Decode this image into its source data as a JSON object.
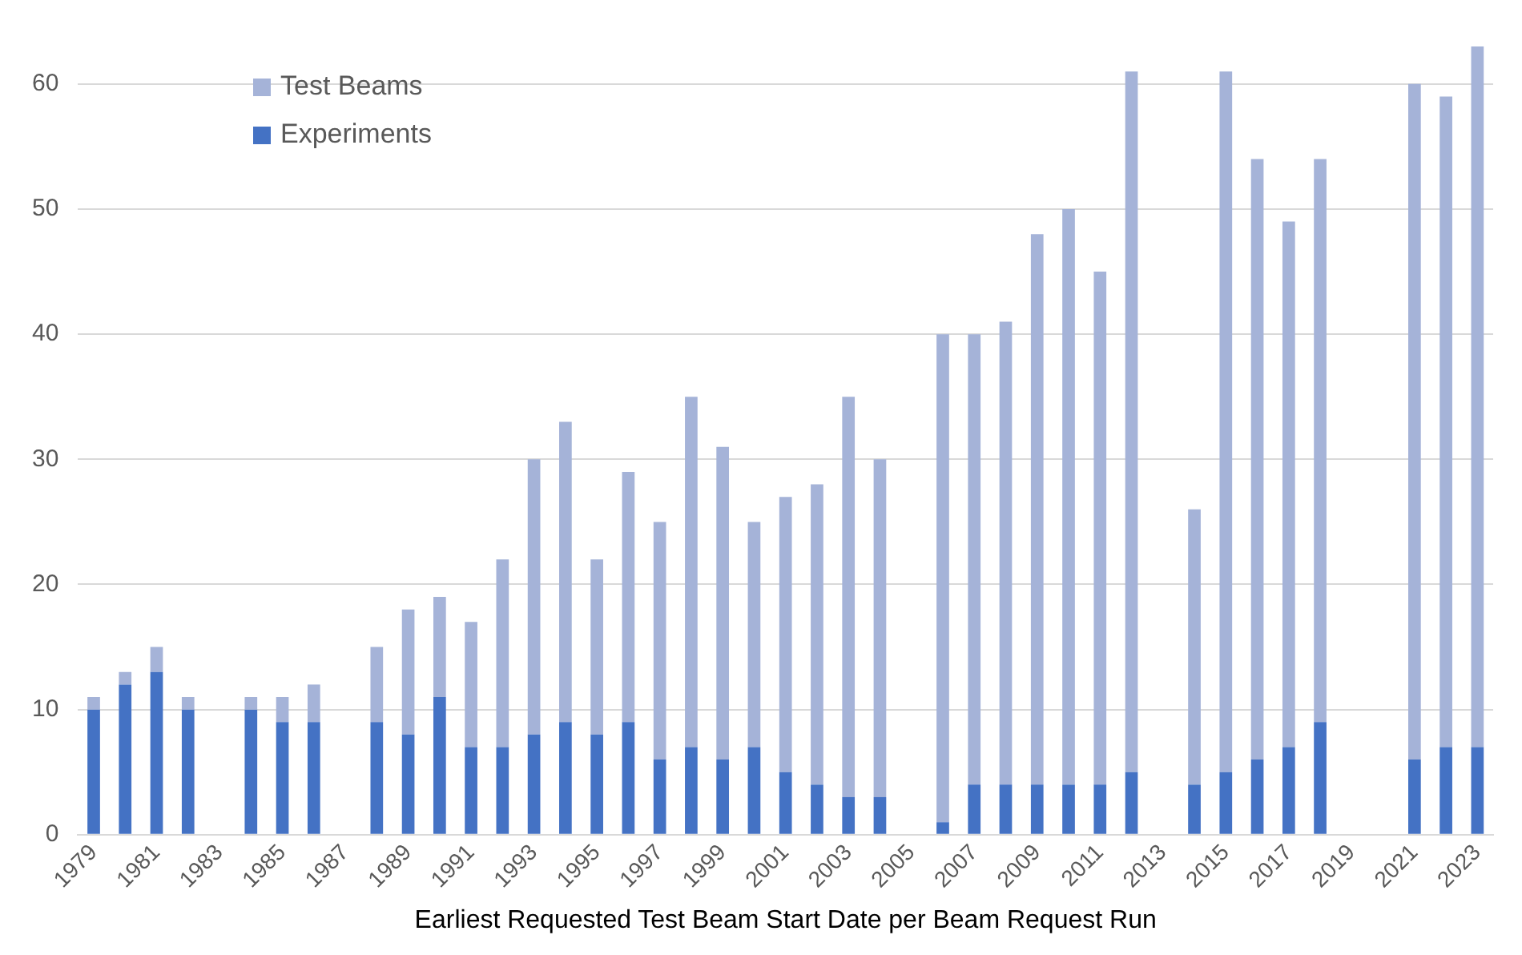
{
  "chart_data": {
    "type": "bar",
    "stacked": true,
    "xlabel": "Earliest Requested Test Beam Start Date per Beam Request Run",
    "categories": [
      "1979",
      null,
      "1981",
      null,
      "1983",
      null,
      "1985",
      null,
      "1987",
      null,
      "1989",
      null,
      "1991",
      null,
      "1993",
      null,
      "1995",
      null,
      "1997",
      null,
      "1999",
      null,
      "2001",
      null,
      "2003",
      null,
      "2005",
      null,
      "2007",
      null,
      "2009",
      null,
      "2011",
      null,
      "2013",
      null,
      "2015",
      null,
      "2017",
      null,
      "2019",
      null,
      "2021",
      null,
      "2023"
    ],
    "series": [
      {
        "name": "Experiments",
        "color": "#4472c4",
        "values": [
          10,
          12,
          13,
          10,
          null,
          10,
          9,
          9,
          null,
          9,
          8,
          11,
          7,
          7,
          8,
          9,
          8,
          9,
          6,
          7,
          6,
          7,
          5,
          4,
          3,
          3,
          null,
          1,
          4,
          4,
          4,
          4,
          4,
          5,
          null,
          4,
          5,
          6,
          7,
          9,
          null,
          null,
          6,
          7,
          7
        ]
      },
      {
        "name": "Test Beams",
        "color": "#a5b3d8",
        "values": [
          1,
          1,
          2,
          1,
          null,
          1,
          2,
          3,
          null,
          6,
          10,
          8,
          10,
          15,
          22,
          24,
          14,
          20,
          19,
          28,
          25,
          18,
          22,
          24,
          32,
          27,
          null,
          39,
          36,
          37,
          44,
          46,
          41,
          56,
          null,
          22,
          56,
          48,
          42,
          45,
          null,
          null,
          54,
          52,
          56
        ]
      }
    ],
    "ylim": [
      0,
      63
    ],
    "yticks": [
      0,
      10,
      20,
      30,
      40,
      50,
      60
    ],
    "grid": "y",
    "legend": "top left"
  }
}
